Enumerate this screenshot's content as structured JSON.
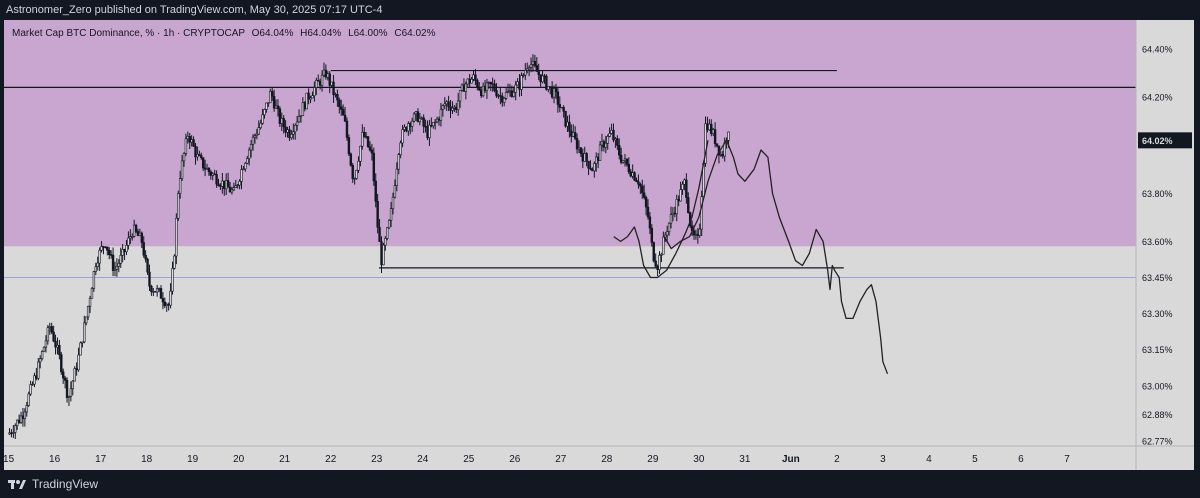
{
  "header": {
    "published_text": "Astronomer_Zero published on TradingView.com, May 30, 2025 07:17 UTC-4"
  },
  "legend": {
    "symbol_text": "Market Cap BTC Dominance, % · 1h · CRYPTOCAP",
    "open_label": "O",
    "open_value": "64.04%",
    "high_label": "H",
    "high_value": "64.04%",
    "low_label": "L",
    "low_value": "64.00%",
    "close_label": "C",
    "close_value": "64.02%"
  },
  "footer": {
    "brand": "TradingView"
  },
  "colors": {
    "zone_fill": "#c9a6cf",
    "background": "#d9d9d9",
    "candle": "#131722",
    "price_tag_bg": "#131722",
    "price_tag_fg": "#d9d9d9",
    "accent_line": "#9aa3d9"
  },
  "chart_data": {
    "type": "candlestick",
    "symbol": "Market Cap BTC Dominance, %",
    "interval": "1h",
    "exchange": "CRYPTOCAP",
    "x_ticks": [
      "15",
      "16",
      "17",
      "18",
      "19",
      "20",
      "21",
      "22",
      "23",
      "24",
      "25",
      "26",
      "27",
      "28",
      "29",
      "30",
      "31",
      "Jun",
      "2",
      "3",
      "4",
      "5",
      "6",
      "7"
    ],
    "x_tick_index": [
      0,
      1,
      2,
      3,
      4,
      5,
      6,
      7,
      8,
      9,
      10,
      11,
      12,
      13,
      14,
      15,
      16,
      17,
      18,
      19,
      20,
      21,
      22,
      23
    ],
    "y_ticks": [
      "64.40%",
      "64.20%",
      "63.80%",
      "63.60%",
      "63.45%",
      "63.30%",
      "63.15%",
      "63.00%",
      "62.88%",
      "62.77%"
    ],
    "y_tick_values": [
      64.4,
      64.2,
      63.8,
      63.6,
      63.45,
      63.3,
      63.15,
      63.0,
      62.88,
      62.77
    ],
    "ylim": [
      62.75,
      64.52
    ],
    "xlim": [
      -0.1,
      24.5
    ],
    "current_price": "64.02%",
    "current_price_value": 64.02,
    "shaded_zone": {
      "from": 63.58,
      "to": 64.52
    },
    "horizontal_lines": [
      {
        "value": 64.24,
        "from": -0.1,
        "to": 24.5
      },
      {
        "value": 63.45,
        "from": -0.1,
        "to": 24.5,
        "style": "thin-blue"
      },
      {
        "value": 64.31,
        "from": 7.0,
        "to": 18.0
      },
      {
        "value": 63.49,
        "from": 8.05,
        "to": 18.15
      }
    ],
    "candle_keypoints": [
      [
        0.0,
        62.8
      ],
      [
        0.3,
        62.88
      ],
      [
        0.6,
        63.05
      ],
      [
        0.9,
        63.25
      ],
      [
        1.1,
        63.12
      ],
      [
        1.3,
        62.95
      ],
      [
        1.5,
        63.1
      ],
      [
        1.7,
        63.3
      ],
      [
        1.9,
        63.52
      ],
      [
        2.1,
        63.6
      ],
      [
        2.3,
        63.48
      ],
      [
        2.5,
        63.55
      ],
      [
        2.7,
        63.65
      ],
      [
        2.9,
        63.6
      ],
      [
        3.05,
        63.42
      ],
      [
        3.3,
        63.38
      ],
      [
        3.5,
        63.33
      ],
      [
        3.6,
        63.55
      ],
      [
        3.7,
        63.85
      ],
      [
        3.9,
        64.05
      ],
      [
        4.1,
        63.95
      ],
      [
        4.3,
        63.9
      ],
      [
        4.6,
        63.85
      ],
      [
        4.9,
        63.8
      ],
      [
        5.1,
        63.92
      ],
      [
        5.3,
        64.02
      ],
      [
        5.5,
        64.1
      ],
      [
        5.7,
        64.22
      ],
      [
        5.9,
        64.1
      ],
      [
        6.1,
        64.05
      ],
      [
        6.3,
        64.12
      ],
      [
        6.5,
        64.2
      ],
      [
        6.7,
        64.25
      ],
      [
        6.9,
        64.3
      ],
      [
        7.1,
        64.2
      ],
      [
        7.3,
        64.1
      ],
      [
        7.5,
        63.85
      ],
      [
        7.7,
        64.05
      ],
      [
        7.9,
        63.95
      ],
      [
        8.0,
        63.7
      ],
      [
        8.1,
        63.52
      ],
      [
        8.3,
        63.7
      ],
      [
        8.5,
        64.02
      ],
      [
        8.7,
        64.1
      ],
      [
        8.9,
        64.12
      ],
      [
        9.1,
        64.05
      ],
      [
        9.3,
        64.1
      ],
      [
        9.5,
        64.18
      ],
      [
        9.7,
        64.15
      ],
      [
        9.9,
        64.25
      ],
      [
        10.1,
        64.28
      ],
      [
        10.3,
        64.22
      ],
      [
        10.5,
        64.25
      ],
      [
        10.7,
        64.2
      ],
      [
        10.9,
        64.22
      ],
      [
        11.1,
        64.25
      ],
      [
        11.3,
        64.35
      ],
      [
        11.5,
        64.3
      ],
      [
        11.7,
        64.25
      ],
      [
        11.9,
        64.2
      ],
      [
        12.1,
        64.1
      ],
      [
        12.3,
        64.02
      ],
      [
        12.5,
        63.95
      ],
      [
        12.7,
        63.9
      ],
      [
        12.9,
        64.0
      ],
      [
        13.1,
        64.05
      ],
      [
        13.3,
        63.95
      ],
      [
        13.5,
        63.9
      ],
      [
        13.7,
        63.85
      ],
      [
        13.9,
        63.7
      ],
      [
        14.0,
        63.55
      ],
      [
        14.1,
        63.5
      ],
      [
        14.3,
        63.65
      ],
      [
        14.5,
        63.75
      ],
      [
        14.7,
        63.85
      ],
      [
        14.85,
        63.62
      ],
      [
        15.0,
        63.6
      ],
      [
        15.15,
        64.1
      ],
      [
        15.3,
        64.05
      ],
      [
        15.5,
        63.95
      ],
      [
        15.65,
        64.08
      ]
    ],
    "annotations": [
      {
        "type": "projection-path",
        "label": ""
      },
      {
        "type": "projection-path",
        "label": ""
      }
    ]
  }
}
